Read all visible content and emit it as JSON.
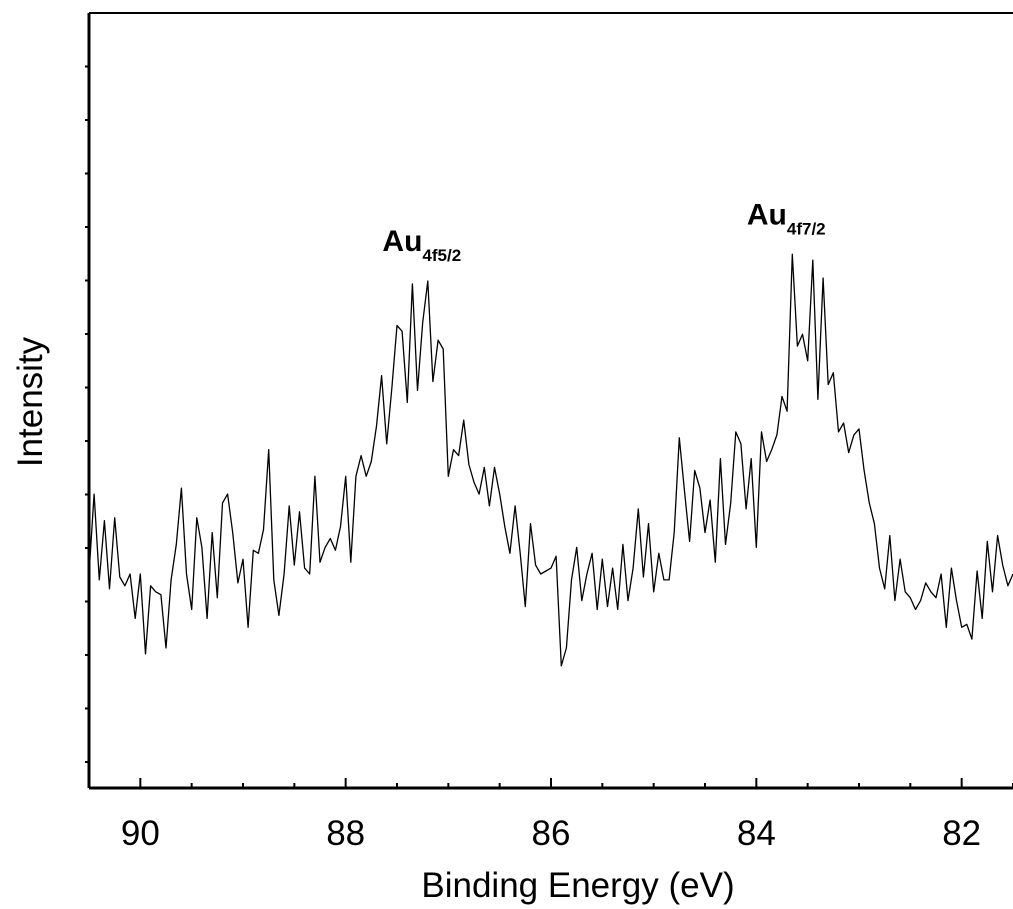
{
  "chart_data": {
    "type": "line",
    "xlabel": "Binding Energy (eV)",
    "ylabel": "Intensity",
    "x_reversed": true,
    "xlim": [
      90.5,
      81.5
    ],
    "ylim": [
      0,
      100
    ],
    "y_ticks_labeled": false,
    "x_ticks": [
      90,
      88,
      86,
      84,
      82
    ],
    "x_tick_labels": [
      "90",
      "88",
      "86",
      "84",
      "82"
    ],
    "annotations": [
      {
        "main": "Au",
        "sub": "4f5/2",
        "x": 87.2
      },
      {
        "main": "Au",
        "sub": "4f7/2",
        "x": 83.65
      }
    ],
    "series": [
      {
        "points": [
          [
            90.5,
            25.0
          ],
          [
            90.45,
            38.5
          ],
          [
            90.4,
            24.0
          ],
          [
            90.35,
            34.0
          ],
          [
            90.3,
            22.5
          ],
          [
            90.25,
            34.5
          ],
          [
            90.2,
            24.5
          ],
          [
            90.15,
            23.0
          ],
          [
            90.1,
            25.0
          ],
          [
            90.05,
            17.5
          ],
          [
            90.0,
            25.0
          ],
          [
            89.95,
            11.5
          ],
          [
            89.9,
            23.0
          ],
          [
            89.85,
            22.0
          ],
          [
            89.8,
            21.5
          ],
          [
            89.75,
            12.5
          ],
          [
            89.7,
            24.0
          ],
          [
            89.65,
            30.0
          ],
          [
            89.6,
            39.5
          ],
          [
            89.55,
            25.0
          ],
          [
            89.5,
            19.0
          ],
          [
            89.45,
            34.5
          ],
          [
            89.4,
            29.5
          ],
          [
            89.35,
            17.5
          ],
          [
            89.3,
            32.0
          ],
          [
            89.25,
            21.0
          ],
          [
            89.2,
            37.0
          ],
          [
            89.15,
            38.5
          ],
          [
            89.1,
            32.0
          ],
          [
            89.05,
            23.5
          ],
          [
            89.0,
            27.5
          ],
          [
            88.95,
            16.0
          ],
          [
            88.9,
            29.0
          ],
          [
            88.85,
            28.5
          ],
          [
            88.8,
            32.5
          ],
          [
            88.75,
            46.0
          ],
          [
            88.7,
            24.0
          ],
          [
            88.65,
            18.0
          ],
          [
            88.6,
            25.0
          ],
          [
            88.55,
            36.5
          ],
          [
            88.5,
            26.5
          ],
          [
            88.45,
            35.5
          ],
          [
            88.4,
            26.0
          ],
          [
            88.35,
            25.0
          ],
          [
            88.3,
            41.5
          ],
          [
            88.25,
            27.0
          ],
          [
            88.2,
            29.5
          ],
          [
            88.15,
            31.0
          ],
          [
            88.1,
            29.0
          ],
          [
            88.05,
            33.0
          ],
          [
            88.0,
            41.5
          ],
          [
            87.95,
            27.0
          ],
          [
            87.9,
            41.5
          ],
          [
            87.85,
            45.0
          ],
          [
            87.8,
            41.5
          ],
          [
            87.75,
            44.0
          ],
          [
            87.7,
            50.0
          ],
          [
            87.65,
            58.5
          ],
          [
            87.6,
            47.0
          ],
          [
            87.55,
            56.5
          ],
          [
            87.5,
            67.0
          ],
          [
            87.45,
            66.0
          ],
          [
            87.4,
            54.0
          ],
          [
            87.35,
            74.0
          ],
          [
            87.3,
            56.0
          ],
          [
            87.25,
            67.5
          ],
          [
            87.2,
            74.5
          ],
          [
            87.15,
            57.5
          ],
          [
            87.1,
            64.5
          ],
          [
            87.05,
            63.0
          ],
          [
            87.0,
            41.5
          ],
          [
            86.95,
            46.0
          ],
          [
            86.9,
            45.0
          ],
          [
            86.85,
            51.0
          ],
          [
            86.8,
            43.5
          ],
          [
            86.75,
            40.5
          ],
          [
            86.7,
            38.5
          ],
          [
            86.65,
            43.0
          ],
          [
            86.6,
            36.5
          ],
          [
            86.55,
            43.0
          ],
          [
            86.5,
            38.5
          ],
          [
            86.45,
            33.0
          ],
          [
            86.4,
            28.5
          ],
          [
            86.35,
            36.5
          ],
          [
            86.3,
            28.5
          ],
          [
            86.25,
            19.5
          ],
          [
            86.2,
            33.5
          ],
          [
            86.15,
            26.5
          ],
          [
            86.1,
            25.0
          ],
          [
            86.05,
            25.5
          ],
          [
            86.0,
            26.0
          ],
          [
            85.95,
            28.0
          ],
          [
            85.9,
            9.5
          ],
          [
            85.85,
            12.5
          ],
          [
            85.8,
            24.0
          ],
          [
            85.75,
            29.5
          ],
          [
            85.7,
            20.5
          ],
          [
            85.65,
            25.0
          ],
          [
            85.6,
            28.5
          ],
          [
            85.55,
            19.0
          ],
          [
            85.5,
            27.5
          ],
          [
            85.45,
            19.5
          ],
          [
            85.4,
            26.0
          ],
          [
            85.35,
            19.0
          ],
          [
            85.3,
            30.0
          ],
          [
            85.25,
            20.5
          ],
          [
            85.2,
            26.0
          ],
          [
            85.15,
            36.0
          ],
          [
            85.1,
            24.5
          ],
          [
            85.05,
            33.5
          ],
          [
            85.0,
            22.0
          ],
          [
            84.95,
            28.5
          ],
          [
            84.9,
            24.0
          ],
          [
            84.85,
            24.0
          ],
          [
            84.8,
            32.0
          ],
          [
            84.75,
            48.0
          ],
          [
            84.7,
            39.0
          ],
          [
            84.65,
            30.5
          ],
          [
            84.6,
            42.5
          ],
          [
            84.55,
            39.5
          ],
          [
            84.5,
            32.0
          ],
          [
            84.45,
            37.5
          ],
          [
            84.4,
            27.0
          ],
          [
            84.35,
            44.5
          ],
          [
            84.3,
            30.0
          ],
          [
            84.25,
            37.0
          ],
          [
            84.2,
            49.0
          ],
          [
            84.15,
            47.0
          ],
          [
            84.1,
            36.0
          ],
          [
            84.05,
            44.5
          ],
          [
            84.0,
            29.5
          ],
          [
            83.95,
            49.0
          ],
          [
            83.9,
            44.0
          ],
          [
            83.85,
            46.0
          ],
          [
            83.8,
            48.5
          ],
          [
            83.75,
            55.0
          ],
          [
            83.7,
            52.5
          ],
          [
            83.65,
            79.0
          ],
          [
            83.6,
            63.5
          ],
          [
            83.55,
            65.5
          ],
          [
            83.5,
            61.0
          ],
          [
            83.45,
            78.0
          ],
          [
            83.4,
            54.5
          ],
          [
            83.35,
            75.0
          ],
          [
            83.3,
            57.0
          ],
          [
            83.25,
            59.0
          ],
          [
            83.2,
            49.0
          ],
          [
            83.15,
            50.5
          ],
          [
            83.1,
            45.5
          ],
          [
            83.05,
            48.5
          ],
          [
            83.0,
            49.5
          ],
          [
            82.95,
            42.5
          ],
          [
            82.9,
            37.0
          ],
          [
            82.85,
            33.5
          ],
          [
            82.8,
            26.0
          ],
          [
            82.75,
            22.5
          ],
          [
            82.7,
            31.5
          ],
          [
            82.65,
            20.5
          ],
          [
            82.6,
            27.5
          ],
          [
            82.55,
            22.0
          ],
          [
            82.5,
            21.0
          ],
          [
            82.45,
            19.0
          ],
          [
            82.4,
            20.5
          ],
          [
            82.35,
            23.5
          ],
          [
            82.3,
            22.0
          ],
          [
            82.25,
            21.0
          ],
          [
            82.2,
            25.0
          ],
          [
            82.15,
            16.0
          ],
          [
            82.1,
            26.0
          ],
          [
            82.05,
            20.5
          ],
          [
            82.0,
            16.0
          ],
          [
            81.95,
            16.5
          ],
          [
            81.9,
            14.0
          ],
          [
            81.85,
            25.5
          ],
          [
            81.8,
            17.5
          ],
          [
            81.75,
            30.5
          ],
          [
            81.7,
            22.0
          ],
          [
            81.65,
            31.5
          ],
          [
            81.6,
            26.5
          ],
          [
            81.55,
            23.0
          ],
          [
            81.5,
            25.0
          ]
        ]
      }
    ]
  }
}
